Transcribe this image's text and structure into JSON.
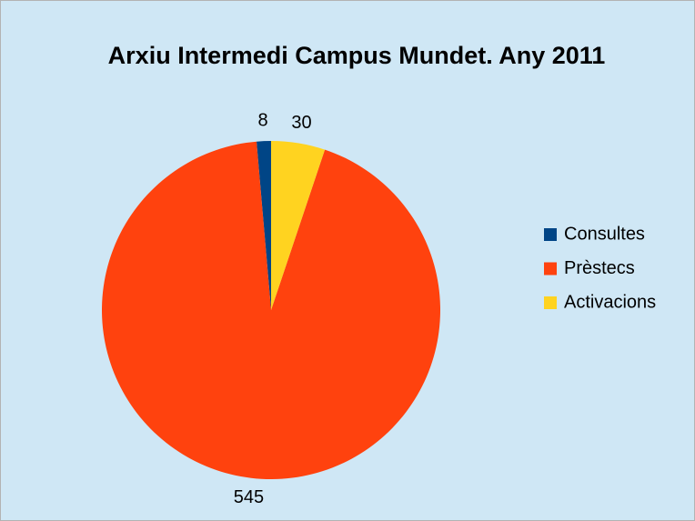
{
  "chart_data": {
    "type": "pie",
    "title": "Arxiu Intermedi Campus Mundet. Any 2011",
    "categories": [
      "Consultes",
      "Prèstecs",
      "Activacions"
    ],
    "values": [
      8,
      545,
      30
    ],
    "colors": [
      "#004586",
      "#ff420e",
      "#ffd320"
    ],
    "legend": "right"
  }
}
